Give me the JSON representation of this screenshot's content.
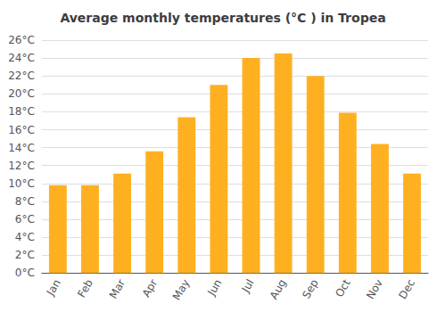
{
  "chart_data": {
    "type": "bar",
    "title": "Average monthly temperatures (°C ) in Tropea",
    "categories": [
      "Jan",
      "Feb",
      "Mar",
      "Apr",
      "May",
      "Jun",
      "Jul",
      "Aug",
      "Sep",
      "Oct",
      "Nov",
      "Dec"
    ],
    "values": [
      9.8,
      9.8,
      11.1,
      13.6,
      17.4,
      21.0,
      24.0,
      24.5,
      22.0,
      17.9,
      14.4,
      11.1
    ],
    "color": "#FFB020",
    "ylim": [
      0,
      26
    ],
    "yticks": [
      {
        "value": 0,
        "label": "0°C"
      },
      {
        "value": 2,
        "label": "2°C"
      },
      {
        "value": 4,
        "label": "4°C"
      },
      {
        "value": 6,
        "label": "6°C"
      },
      {
        "value": 8,
        "label": "8°C"
      },
      {
        "value": 10,
        "label": "10°C"
      },
      {
        "value": 12,
        "label": "12°C"
      },
      {
        "value": 14,
        "label": "14°C"
      },
      {
        "value": 16,
        "label": "16°C"
      },
      {
        "value": 18,
        "label": "18°C"
      },
      {
        "value": 20,
        "label": "20°C"
      },
      {
        "value": 22,
        "label": "22°C"
      },
      {
        "value": 24,
        "label": "24°C"
      },
      {
        "value": 26,
        "label": "26°C"
      }
    ],
    "grid": true
  }
}
